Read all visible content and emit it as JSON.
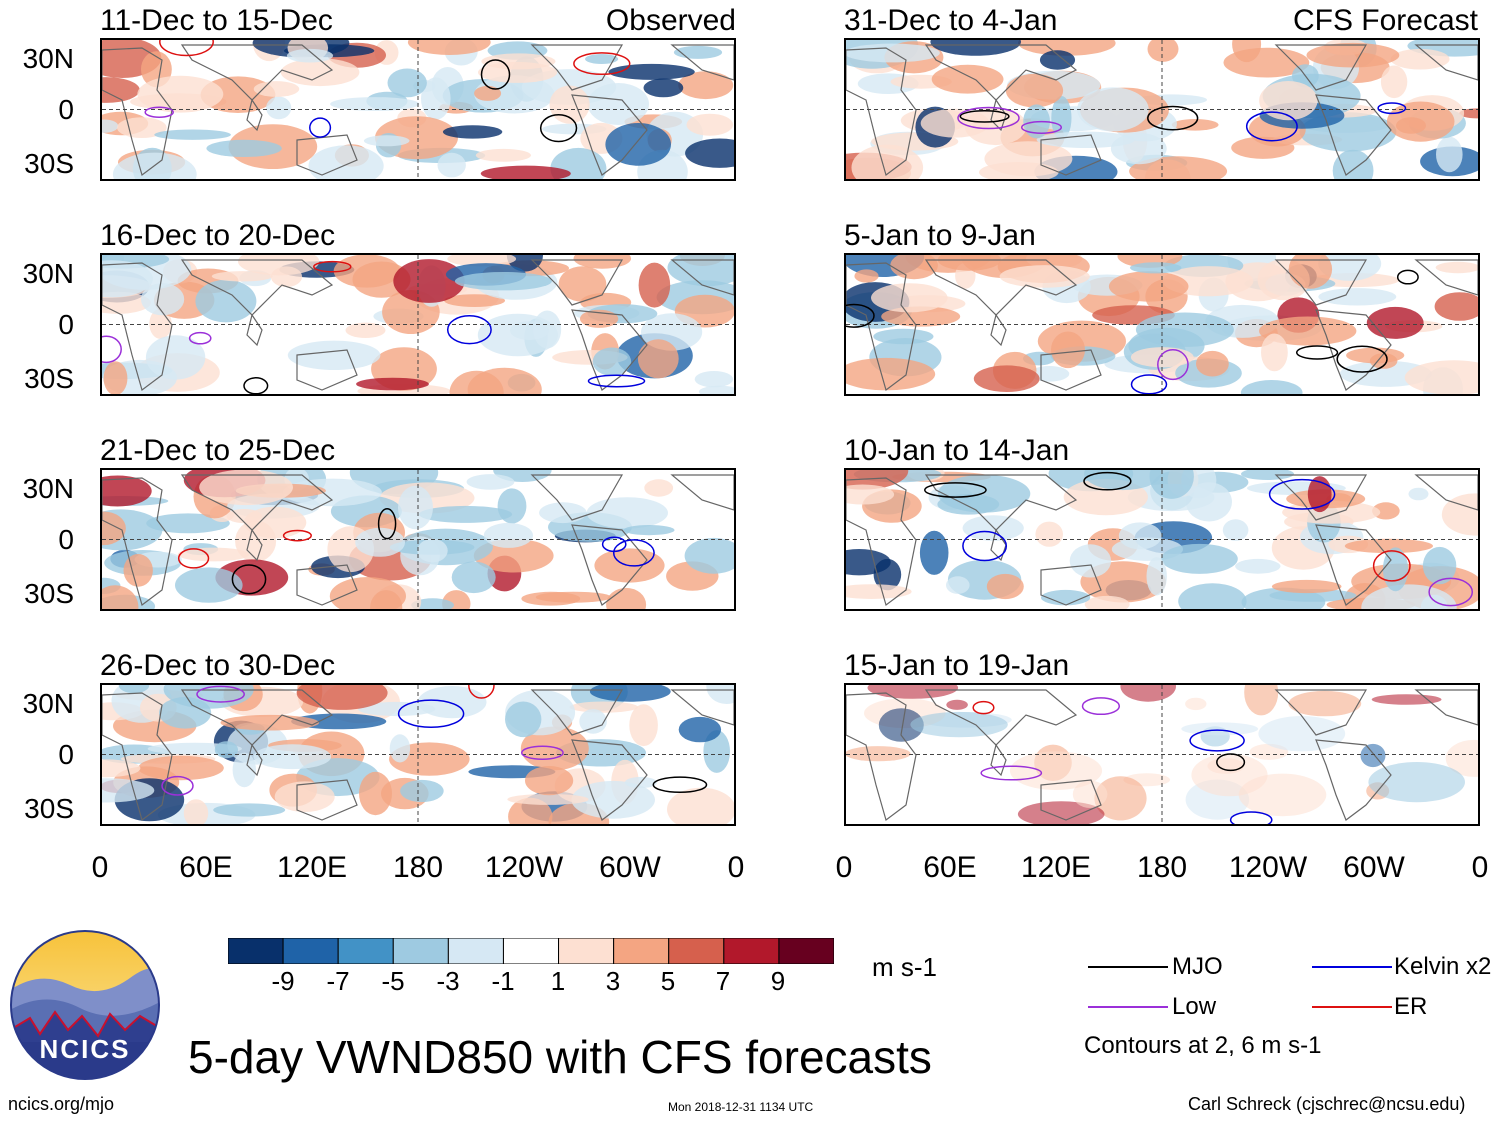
{
  "panels_left": {
    "label": "Observed",
    "titles": [
      "11-Dec to 15-Dec",
      "16-Dec to 20-Dec",
      "21-Dec to 25-Dec",
      "26-Dec to 30-Dec"
    ]
  },
  "panels_right": {
    "label": "CFS Forecast",
    "titles": [
      "31-Dec to 4-Jan",
      "5-Jan to 9-Jan",
      "10-Jan to 14-Jan",
      "15-Jan to 19-Jan"
    ]
  },
  "lat_labels": [
    "30N",
    "0",
    "30S"
  ],
  "lon_labels": [
    "0",
    "60E",
    "120E",
    "180",
    "120W",
    "60W",
    "0"
  ],
  "colorbar": {
    "ticks": [
      "-9",
      "-7",
      "-5",
      "-3",
      "-1",
      "1",
      "3",
      "5",
      "7",
      "9"
    ],
    "colors": [
      "#08306b",
      "#1f63a8",
      "#4292c6",
      "#9ecae1",
      "#d6e8f4",
      "#ffffff",
      "#fde0d2",
      "#f4a582",
      "#d6604d",
      "#b2182b",
      "#67001f"
    ],
    "units": "m s-1"
  },
  "legend": {
    "mjo": {
      "label": "MJO",
      "color": "#000000"
    },
    "kelvin": {
      "label": "Kelvin x2",
      "color": "#0000dd"
    },
    "low": {
      "label": "Low",
      "color": "#9b30d9"
    },
    "er": {
      "label": "ER",
      "color": "#dd1111"
    },
    "note": "Contours at 2, 6 m s-1"
  },
  "main_title": "5-day VWND850 with CFS forecasts",
  "logo_text": "NCICS",
  "url": "ncics.org/mjo",
  "timestamp": "Mon 2018-12-31 1134 UTC",
  "credit": "Carl Schreck (cjschrec@ncsu.edu)"
}
